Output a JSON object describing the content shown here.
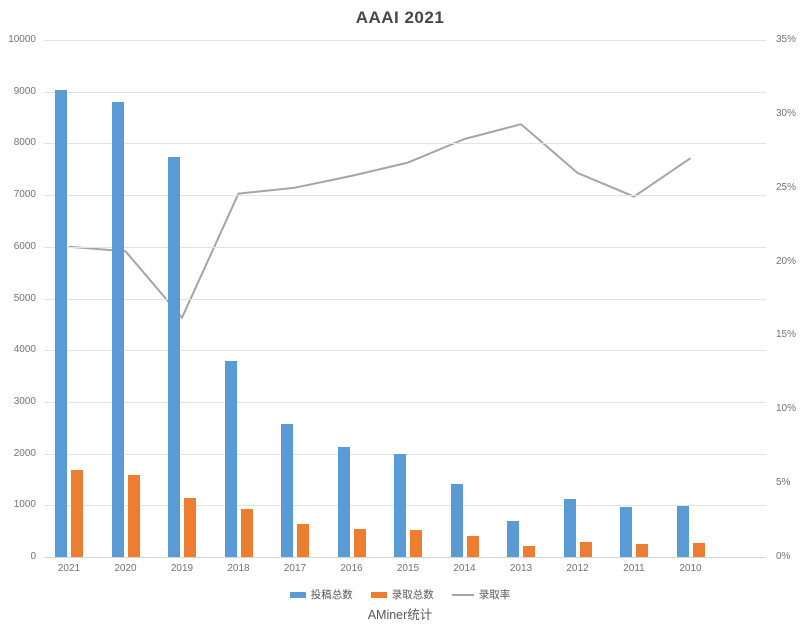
{
  "page": {
    "title": "AAAI 2021"
  },
  "chart_data": {
    "type": "bar",
    "subtype": "combo-bar-line",
    "title": "AAAI 2021",
    "categories": [
      "2021",
      "2020",
      "2019",
      "2018",
      "2017",
      "2016",
      "2015",
      "2014",
      "2013",
      "2012",
      "2011",
      "2010"
    ],
    "series": [
      {
        "name": "投稿总数",
        "type": "bar",
        "axis": "left",
        "color": "#5B9BD5",
        "values": [
          9034,
          8800,
          7745,
          3800,
          2571,
          2132,
          1991,
          1406,
          700,
          1129,
          975,
          982
        ]
      },
      {
        "name": "录取总数",
        "type": "bar",
        "axis": "left",
        "color": "#ED7D31",
        "values": [
          1692,
          1591,
          1150,
          933,
          638,
          549,
          531,
          398,
          205,
          294,
          242,
          264
        ]
      },
      {
        "name": "录取率",
        "type": "line",
        "axis": "right",
        "color": "#A5A5A5",
        "values": [
          21.0,
          20.7,
          16.2,
          24.6,
          25.0,
          25.8,
          26.7,
          28.3,
          29.3,
          26.0,
          24.4,
          27.0
        ],
        "unit": "%"
      }
    ],
    "left_axis": {
      "min": 0,
      "max": 10000,
      "step": 1000,
      "ticks": [
        "10000",
        "9000",
        "8000",
        "7000",
        "6000",
        "5000",
        "4000",
        "3000",
        "2000",
        "1000",
        "0"
      ]
    },
    "right_axis": {
      "min": 0,
      "max": 35,
      "step": 5,
      "ticks": [
        "35%",
        "30%",
        "25%",
        "20%",
        "15%",
        "10%",
        "5%",
        "0%"
      ]
    },
    "grid": true,
    "legend_position": "bottom"
  },
  "footer": {
    "caption": "AMiner统计"
  }
}
